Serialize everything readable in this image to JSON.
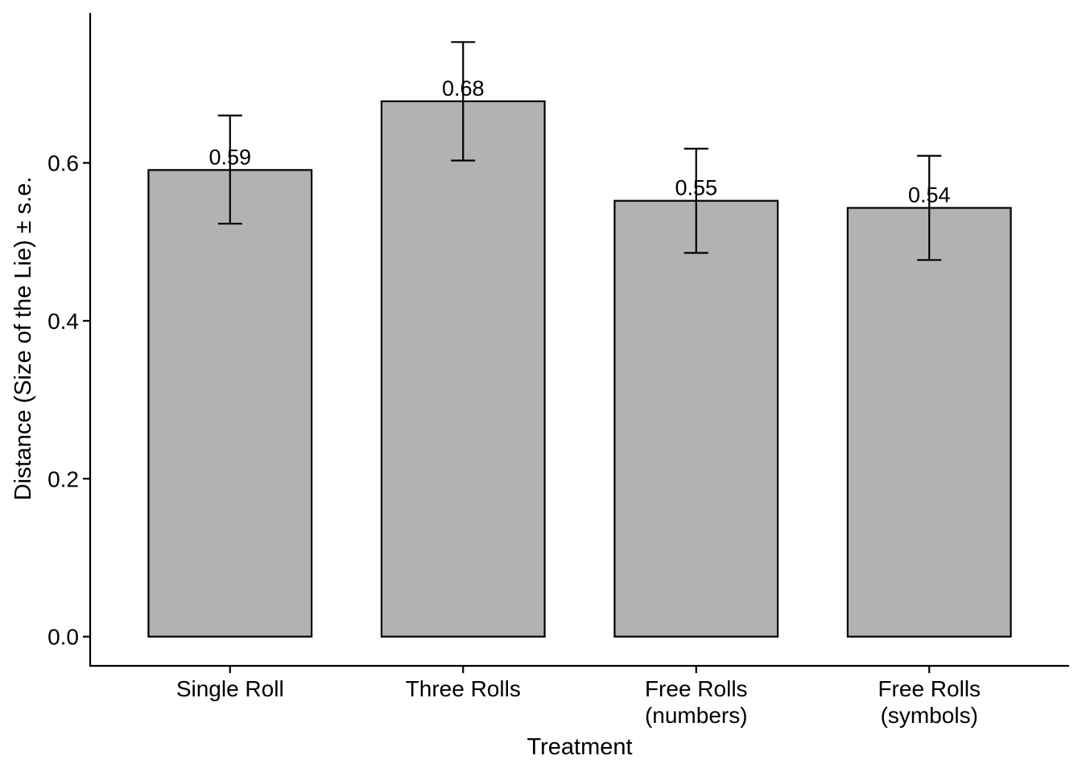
{
  "chart_data": {
    "type": "bar",
    "title": "",
    "xlabel": "Treatment",
    "ylabel": "Distance (Size of the Lie) ± s.e.",
    "categories": [
      [
        "Single Roll"
      ],
      [
        "Three Rolls"
      ],
      [
        "Free Rolls",
        "(numbers)"
      ],
      [
        "Free Rolls",
        "(symbols)"
      ]
    ],
    "values": [
      0.591,
      0.678,
      0.552,
      0.543
    ],
    "value_labels": [
      "0.59",
      "0.68",
      "0.55",
      "0.54"
    ],
    "error_low": [
      0.523,
      0.603,
      0.486,
      0.477
    ],
    "error_high": [
      0.66,
      0.753,
      0.618,
      0.609
    ],
    "y_ticks": [
      0.0,
      0.2,
      0.4,
      0.6
    ],
    "y_tick_labels": [
      "0.0",
      "0.2",
      "0.4",
      "0.6"
    ],
    "ylim": [
      -0.037,
      0.79
    ],
    "grid": false,
    "legend": "none",
    "bar_color": "#b2b2b2",
    "bar_edge_color": "#000000"
  }
}
